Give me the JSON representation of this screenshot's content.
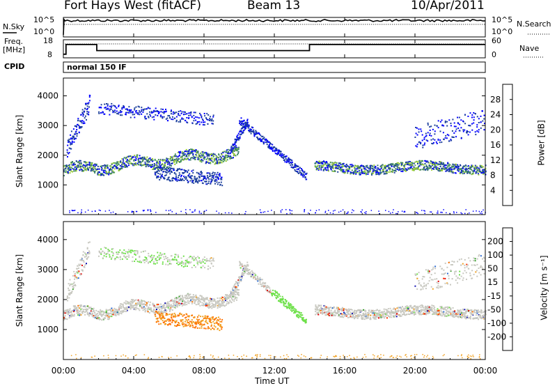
{
  "header": {
    "station": "Fort Hays West (fitACF)",
    "beam": "Beam 13",
    "date": "10/Apr/2011"
  },
  "panels": {
    "nsky_label": "N.Sky",
    "nsearch_label": "N.Search",
    "nsky_ticks": [
      "10^5",
      "10^0"
    ],
    "nsearch_ticks": [
      "10^5",
      "10^0"
    ],
    "freq_label_line1": "Freq.",
    "freq_label_line2": "[MHz]",
    "freq_ticks": [
      "18",
      "8"
    ],
    "nave_label": "Nave",
    "nave_ticks": [
      "60",
      "0"
    ],
    "cpid_label": "CPID",
    "cpid_value": "normal 150 IF"
  },
  "colors": {
    "power": [
      "#0000ff",
      "#1c3f9c",
      "#3a7a6a",
      "#4b9b5a",
      "#9acd32",
      "#ffd700",
      "#ff8c00",
      "#ff4500",
      "#ff0000"
    ],
    "velocity": [
      "#1010b0",
      "#2d6bd3",
      "#3aa02d",
      "#6ee04a",
      "#c8c8c0",
      "#f0a020",
      "#ff7000",
      "#ff3000",
      "#e00000"
    ]
  },
  "chart_data": [
    {
      "type": "heatmap",
      "name": "power",
      "ylabel": "Slant Range [km]",
      "yticks": [
        "4000",
        "3000",
        "2000",
        "1000"
      ],
      "ylim": [
        0,
        4600
      ],
      "colorbar_label": "Power [dB]",
      "colorbar_ticks": [
        "28",
        "24",
        "20",
        "16",
        "12",
        "8",
        "4"
      ],
      "colorbar_range": [
        0,
        32
      ]
    },
    {
      "type": "heatmap",
      "name": "velocity",
      "xlabel": "Time UT",
      "ylabel": "Slant Range [km]",
      "yticks": [
        "4000",
        "3000",
        "2000",
        "1000"
      ],
      "ylim": [
        0,
        4600
      ],
      "colorbar_label": "Velocity [m s⁻¹]",
      "colorbar_ticks": [
        "200",
        "100",
        "50",
        "15",
        "-15",
        "-50",
        "-100",
        "-200"
      ]
    }
  ],
  "xaxis": {
    "ticks": [
      "00:00",
      "04:00",
      "08:00",
      "12:00",
      "16:00",
      "20:00",
      "00:00"
    ],
    "range_hours": [
      0,
      24
    ],
    "label": "Time UT"
  },
  "frequency_series": {
    "segments": [
      {
        "start": 0,
        "end": 0.15,
        "value": 8
      },
      {
        "start": 0.15,
        "end": 1.9,
        "value": 16
      },
      {
        "start": 1.9,
        "end": 14.0,
        "value": 11
      },
      {
        "start": 14.0,
        "end": 24.0,
        "value": 16
      }
    ]
  }
}
